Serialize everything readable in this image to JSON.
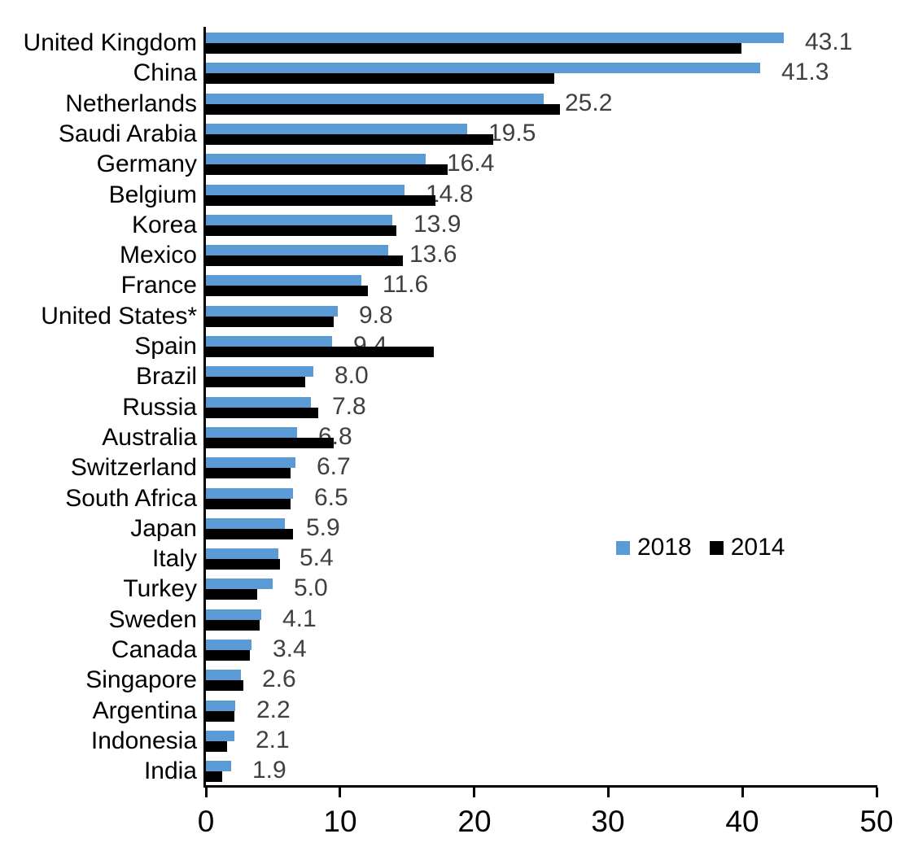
{
  "chart_data": {
    "type": "bar",
    "orientation": "horizontal",
    "title": "",
    "xlabel": "",
    "ylabel": "",
    "categories": [
      "United Kingdom",
      "China",
      "Netherlands",
      "Saudi Arabia",
      "Germany",
      "Belgium",
      "Korea",
      "Mexico",
      "France",
      "United States*",
      "Spain",
      "Brazil",
      "Russia",
      "Australia",
      "Switzerland",
      "South Africa",
      "Japan",
      "Italy",
      "Turkey",
      "Sweden",
      "Canada",
      "Singapore",
      "Argentina",
      "Indonesia",
      "India"
    ],
    "series": [
      {
        "name": "2018",
        "color": "#5B9BD5",
        "show_data_labels": true,
        "values": [
          43.1,
          41.3,
          25.2,
          19.5,
          16.4,
          14.8,
          13.9,
          13.6,
          11.6,
          9.8,
          9.4,
          8.0,
          7.8,
          6.8,
          6.7,
          6.5,
          5.9,
          5.4,
          5.0,
          4.1,
          3.4,
          2.6,
          2.2,
          2.1,
          1.9
        ]
      },
      {
        "name": "2014",
        "color": "#000000",
        "show_data_labels": false,
        "values": [
          39.9,
          26.0,
          26.4,
          21.4,
          18.0,
          17.1,
          14.2,
          14.7,
          12.1,
          9.5,
          17.0,
          7.4,
          8.4,
          9.5,
          6.3,
          6.3,
          6.5,
          5.5,
          3.8,
          4.0,
          3.3,
          2.8,
          2.1,
          1.6,
          1.2
        ]
      }
    ],
    "data_labels": [
      "43.1",
      "41.3",
      "25.2",
      "19.5",
      "16.4",
      "14.8",
      "13.9",
      "13.6",
      "11.6",
      "9.8",
      "9.4",
      "8.0",
      "7.8",
      "6.8",
      "6.7",
      "6.5",
      "5.9",
      "5.4",
      "5.0",
      "4.1",
      "3.4",
      "2.6",
      "2.2",
      "2.1",
      "1.9"
    ],
    "xlim": [
      0,
      50
    ],
    "x_ticks": [
      "0",
      "10",
      "20",
      "30",
      "40",
      "50"
    ],
    "grid": false,
    "legend_position": "middle-right",
    "legend_items": [
      "2018",
      "2014"
    ],
    "data_label_color": "#404040",
    "axis_color": "#000000",
    "background_color": "#ffffff"
  }
}
